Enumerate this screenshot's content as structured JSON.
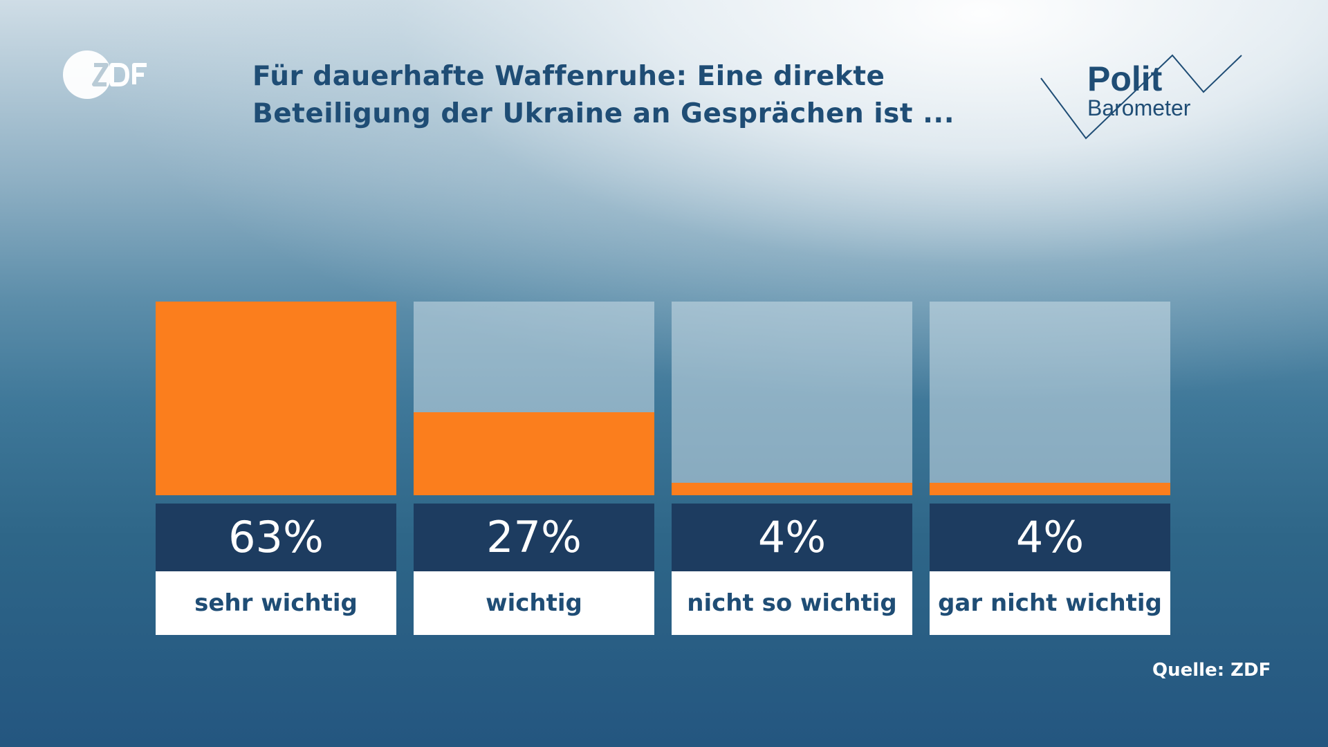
{
  "logo": {
    "text": "ZDF"
  },
  "brand": {
    "line1": "Polit",
    "line2": "Barometer"
  },
  "colors": {
    "fill": "#fb7e1d",
    "value_box": "#1d3c60",
    "label_text": "#1f4d75"
  },
  "chart_data": {
    "type": "bar",
    "title_lines": [
      "Für dauerhafte Waffenruhe: Eine direkte",
      "Beteiligung der Ukraine an Gesprächen ist ..."
    ],
    "categories": [
      "sehr wichtig",
      "wichtig",
      "nicht so wichtig",
      "gar nicht wichtig"
    ],
    "values": [
      63,
      27,
      4,
      4
    ],
    "value_labels": [
      "63%",
      "27%",
      "4%",
      "4%"
    ],
    "unit": "%",
    "ylim": [
      0,
      63
    ],
    "grid": false,
    "legend": "none"
  },
  "source": "Quelle: ZDF"
}
